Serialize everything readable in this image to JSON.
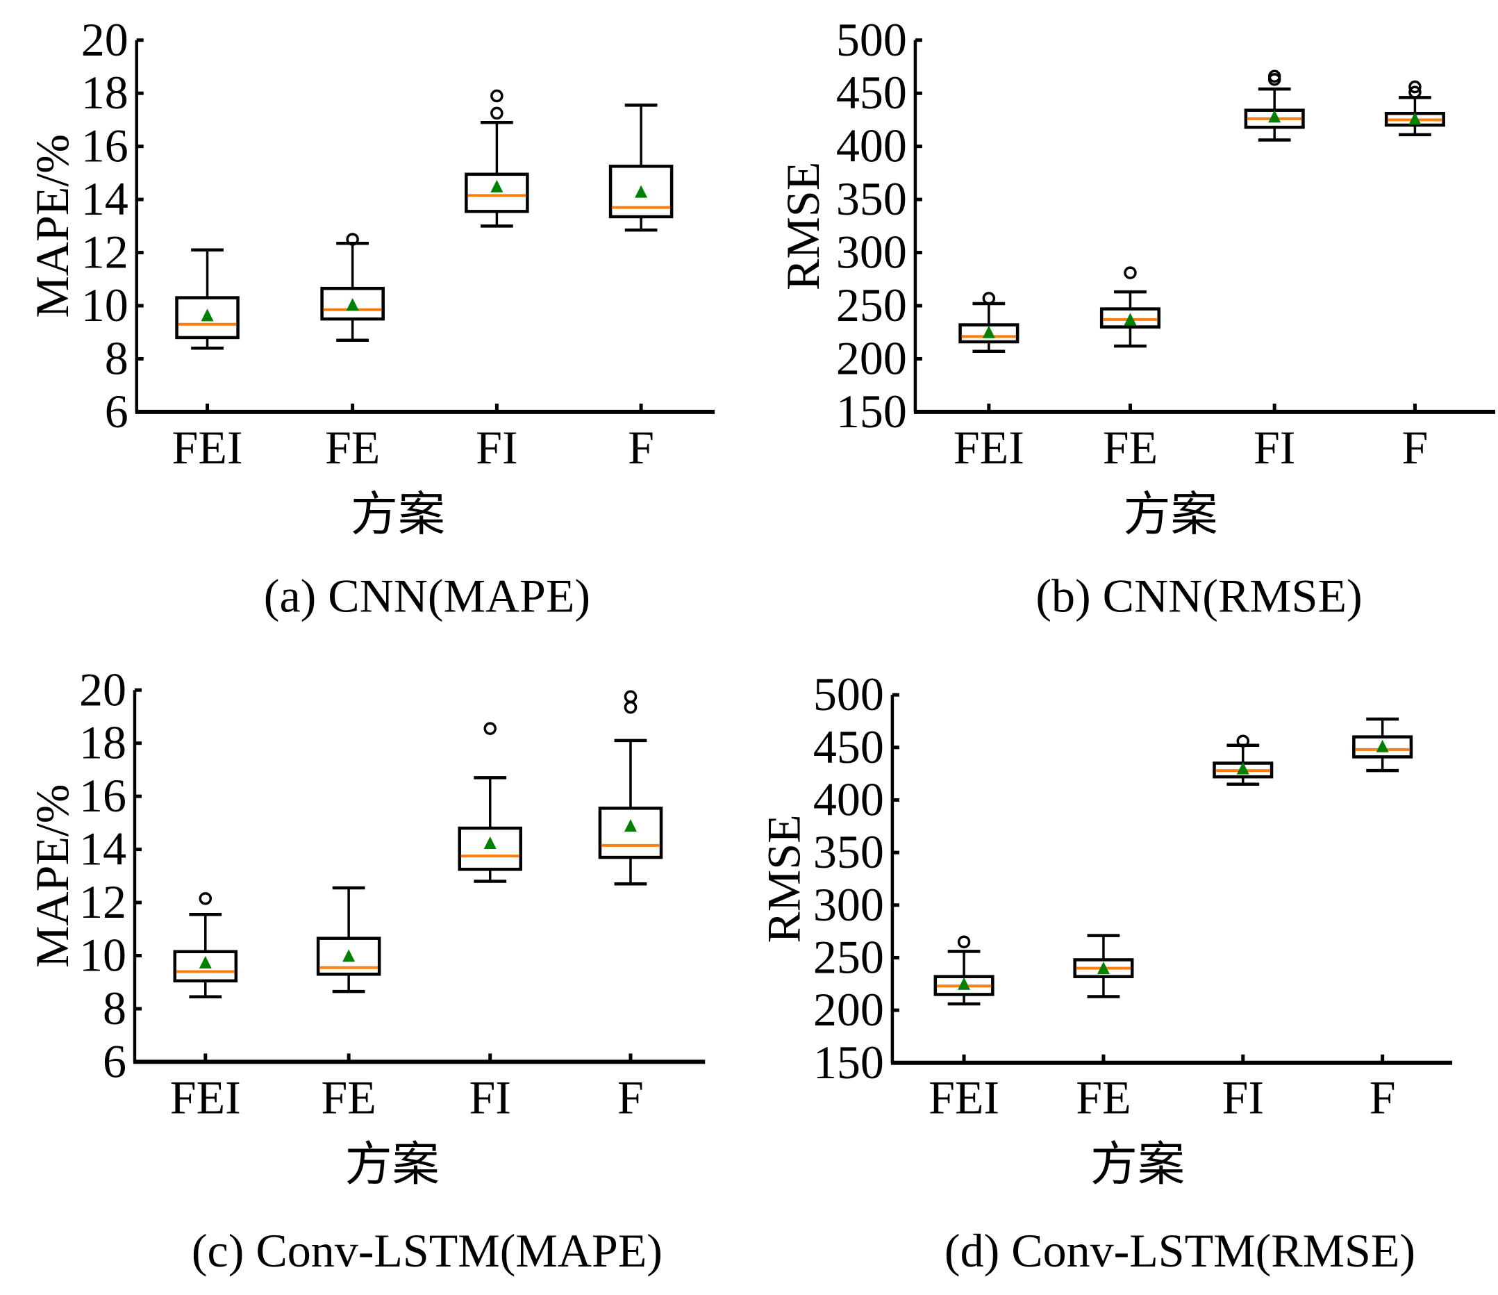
{
  "figure": {
    "colors": {
      "box": "#000000",
      "median": "#ff7f0e",
      "mean": "#008000",
      "outlier": "#000000"
    }
  },
  "chart_data": [
    {
      "type": "box",
      "id": "a",
      "caption": "(a) CNN(MAPE)",
      "xlabel": "方案",
      "ylabel": "MAPE/%",
      "categories": [
        "FEI",
        "FE",
        "FI",
        "F"
      ],
      "ylim": [
        6,
        20
      ],
      "yticks": [
        6,
        8,
        10,
        12,
        14,
        16,
        18,
        20
      ],
      "grid": false,
      "boxes": [
        {
          "category": "FEI",
          "whisker_low": 8.4,
          "q1": 8.8,
          "median": 9.3,
          "mean": 9.6,
          "q3": 10.3,
          "whisker_high": 12.1,
          "outliers": []
        },
        {
          "category": "FE",
          "whisker_low": 8.7,
          "q1": 9.5,
          "median": 9.85,
          "mean": 10.0,
          "q3": 10.65,
          "whisker_high": 12.35,
          "outliers": [
            12.5
          ]
        },
        {
          "category": "FI",
          "whisker_low": 13.0,
          "q1": 13.55,
          "median": 14.15,
          "mean": 14.45,
          "q3": 14.95,
          "whisker_high": 16.9,
          "outliers": [
            17.25,
            17.9
          ]
        },
        {
          "category": "F",
          "whisker_low": 12.85,
          "q1": 13.35,
          "median": 13.7,
          "mean": 14.25,
          "q3": 15.25,
          "whisker_high": 17.55,
          "outliers": []
        }
      ]
    },
    {
      "type": "box",
      "id": "b",
      "caption": "(b) CNN(RMSE)",
      "xlabel": "方案",
      "ylabel": "RMSE",
      "categories": [
        "FEI",
        "FE",
        "FI",
        "F"
      ],
      "ylim": [
        150,
        500
      ],
      "yticks": [
        150,
        200,
        250,
        300,
        350,
        400,
        450,
        500
      ],
      "grid": false,
      "boxes": [
        {
          "category": "FEI",
          "whisker_low": 207,
          "q1": 216,
          "median": 221,
          "mean": 224,
          "q3": 232,
          "whisker_high": 252,
          "outliers": [
            257
          ]
        },
        {
          "category": "FE",
          "whisker_low": 212,
          "q1": 230,
          "median": 237,
          "mean": 236,
          "q3": 247,
          "whisker_high": 263,
          "outliers": [
            281
          ]
        },
        {
          "category": "FI",
          "whisker_low": 406,
          "q1": 418,
          "median": 426,
          "mean": 427,
          "q3": 434,
          "whisker_high": 454,
          "outliers": [
            463,
            466
          ]
        },
        {
          "category": "F",
          "whisker_low": 411,
          "q1": 420,
          "median": 425,
          "mean": 425,
          "q3": 431,
          "whisker_high": 446,
          "outliers": [
            451,
            456
          ]
        }
      ]
    },
    {
      "type": "box",
      "id": "c",
      "caption": "(c) Conv-LSTM(MAPE)",
      "xlabel": "方案",
      "ylabel": "MAPE/%",
      "categories": [
        "FEI",
        "FE",
        "FI",
        "F"
      ],
      "ylim": [
        6,
        20
      ],
      "yticks": [
        6,
        8,
        10,
        12,
        14,
        16,
        18,
        20
      ],
      "grid": false,
      "boxes": [
        {
          "category": "FEI",
          "whisker_low": 8.45,
          "q1": 9.05,
          "median": 9.4,
          "mean": 9.7,
          "q3": 10.15,
          "whisker_high": 11.55,
          "outliers": [
            12.15
          ]
        },
        {
          "category": "FE",
          "whisker_low": 8.65,
          "q1": 9.3,
          "median": 9.55,
          "mean": 9.95,
          "q3": 10.65,
          "whisker_high": 12.55,
          "outliers": []
        },
        {
          "category": "FI",
          "whisker_low": 12.8,
          "q1": 13.25,
          "median": 13.75,
          "mean": 14.2,
          "q3": 14.8,
          "whisker_high": 16.7,
          "outliers": [
            18.55
          ]
        },
        {
          "category": "F",
          "whisker_low": 12.7,
          "q1": 13.7,
          "median": 14.15,
          "mean": 14.85,
          "q3": 15.55,
          "whisker_high": 18.1,
          "outliers": [
            19.35,
            19.75
          ]
        }
      ]
    },
    {
      "type": "box",
      "id": "d",
      "caption": "(d) Conv-LSTM(RMSE)",
      "xlabel": "方案",
      "ylabel": "RMSE",
      "categories": [
        "FEI",
        "FE",
        "FI",
        "F"
      ],
      "ylim": [
        150,
        500
      ],
      "yticks": [
        150,
        200,
        250,
        300,
        350,
        400,
        450,
        500
      ],
      "grid": false,
      "boxes": [
        {
          "category": "FEI",
          "whisker_low": 206,
          "q1": 215,
          "median": 223,
          "mean": 224,
          "q3": 232,
          "whisker_high": 256,
          "outliers": [
            265
          ]
        },
        {
          "category": "FE",
          "whisker_low": 213,
          "q1": 232,
          "median": 240,
          "mean": 239,
          "q3": 248,
          "whisker_high": 271,
          "outliers": []
        },
        {
          "category": "FI",
          "whisker_low": 415,
          "q1": 422,
          "median": 428,
          "mean": 429,
          "q3": 435,
          "whisker_high": 452,
          "outliers": [
            456
          ]
        },
        {
          "category": "F",
          "whisker_low": 428,
          "q1": 441,
          "median": 448,
          "mean": 450,
          "q3": 460,
          "whisker_high": 477,
          "outliers": []
        }
      ]
    }
  ]
}
